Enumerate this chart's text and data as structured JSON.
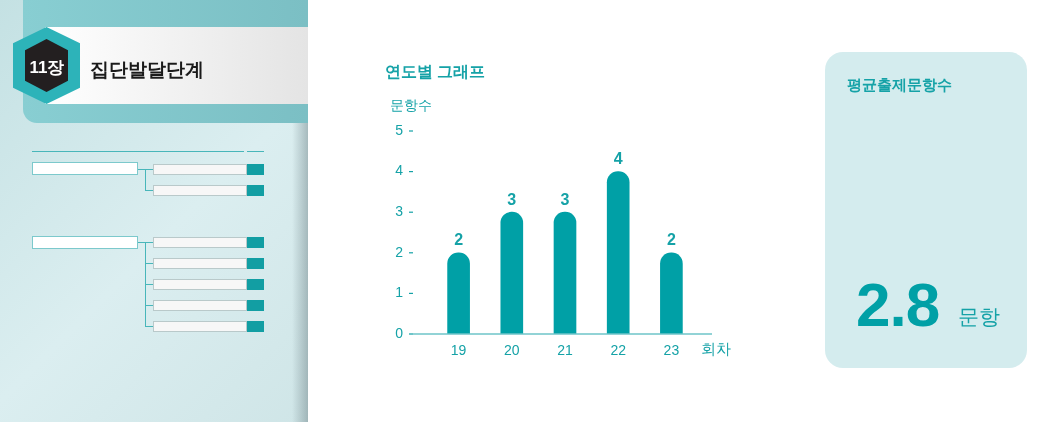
{
  "chart_data": [
    {
      "type": "other",
      "title": "집단발달단계",
      "annotations": [
        "11장"
      ]
    },
    {
      "type": "bar",
      "title": "연도별 그래프",
      "ylabel": "문항수",
      "xlabel": "회차",
      "categories": [
        "19",
        "20",
        "21",
        "22",
        "23"
      ],
      "values": [
        2,
        3,
        3,
        4,
        2
      ],
      "color": "#00a0a6",
      "ylim": [
        0,
        5
      ],
      "yticks": [
        0,
        1,
        2,
        3,
        4,
        5
      ],
      "data_labels": true
    },
    {
      "type": "other",
      "title": "평균출제문항수",
      "annotations": [
        "2.8",
        "문항"
      ]
    }
  ]
}
